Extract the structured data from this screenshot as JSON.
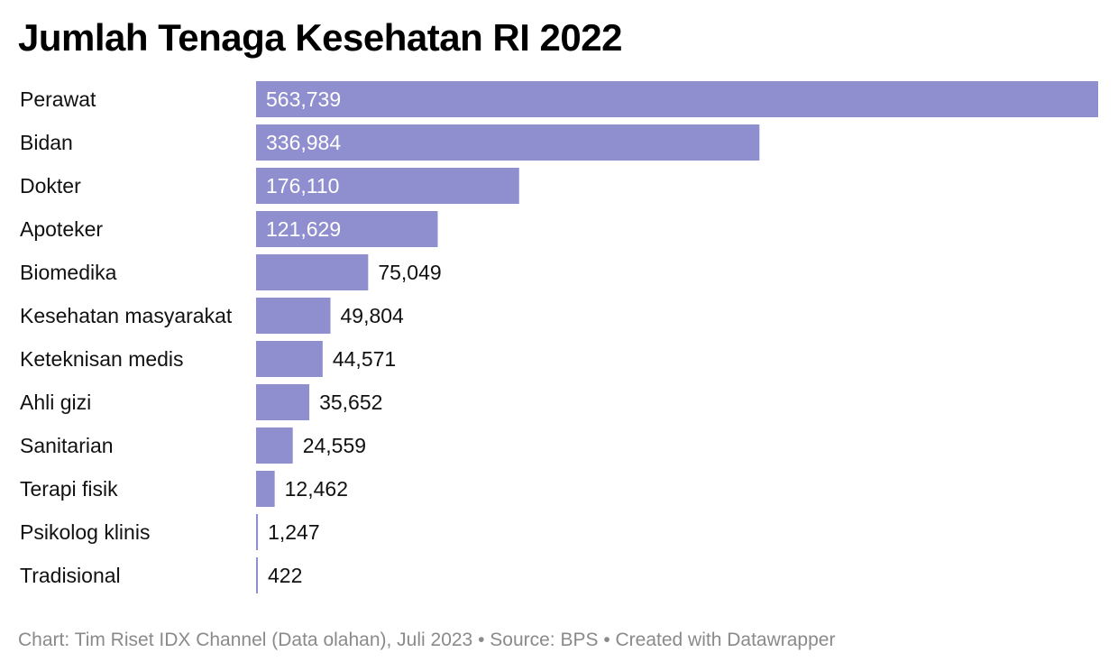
{
  "title": "Jumlah Tenaga Kesehatan RI 2022",
  "footer": "Chart: Tim Riset IDX Channel (Data olahan), Juli 2023 • Source: BPS • Created with Datawrapper",
  "colors": {
    "bar": "#8f8fd0",
    "label_inside": "#ffffff",
    "label_outside": "#111111",
    "category": "#111111"
  },
  "chart_data": {
    "type": "bar",
    "orientation": "horizontal",
    "title": "Jumlah Tenaga Kesehatan RI 2022",
    "categories": [
      "Perawat",
      "Bidan",
      "Dokter",
      "Apoteker",
      "Biomedika",
      "Kesehatan masyarakat",
      "Keteknisan medis",
      "Ahli gizi",
      "Sanitarian",
      "Terapi fisik",
      "Psikolog klinis",
      "Tradisional"
    ],
    "values": [
      563739,
      336984,
      176110,
      121629,
      75049,
      49804,
      44571,
      35652,
      24559,
      12462,
      1247,
      422
    ],
    "value_labels": [
      "563,739",
      "336,984",
      "176,110",
      "121,629",
      "75,049",
      "49,804",
      "44,571",
      "35,652",
      "24,559",
      "12,462",
      "1,247",
      "422"
    ],
    "xlim": [
      0,
      563739
    ],
    "grid": false,
    "legend": "none"
  }
}
